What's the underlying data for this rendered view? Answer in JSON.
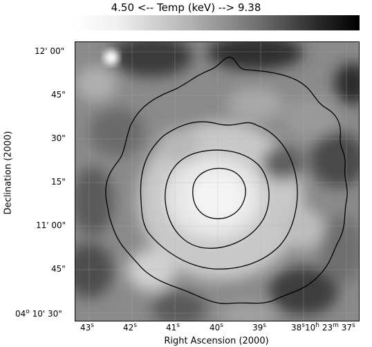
{
  "colorbar": {
    "title": "4.50 <-- Temp (keV) --> 9.38"
  },
  "axes": {
    "y_title": "Declination (2000)",
    "x_title": "Right Ascension (2000)",
    "y_ticks": [
      {
        "main": "12' 00\"",
        "sup": ""
      },
      {
        "main": "45\"",
        "sup": ""
      },
      {
        "main": "30\"",
        "sup": ""
      },
      {
        "main": "15\"",
        "sup": ""
      },
      {
        "main": "11' 00\"",
        "sup": ""
      },
      {
        "main": "45\"",
        "sup": ""
      },
      {
        "main": "04",
        "sup": "o",
        "rest": " 10' 30\""
      }
    ],
    "x_ticks": [
      {
        "main": "43",
        "sup": "s"
      },
      {
        "main": "42",
        "sup": "s"
      },
      {
        "main": "41",
        "sup": "s"
      },
      {
        "main": "40",
        "sup": "s"
      },
      {
        "main": "39",
        "sup": "s"
      },
      {
        "main": "38",
        "sup": "s"
      },
      {
        "main": "10",
        "sup": "h",
        "mid": " 23",
        "sup2": "m",
        "end": " 37",
        "sup3": "s"
      }
    ]
  },
  "colors": {
    "contour": "#000000",
    "frame": "#000000"
  }
}
